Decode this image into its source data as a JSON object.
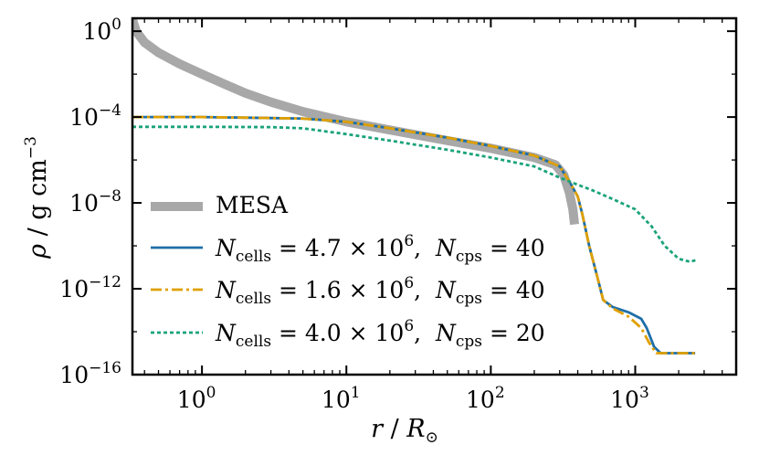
{
  "chart_data": {
    "type": "line",
    "title": "",
    "xlabel": {
      "var": "r",
      "sep": " / ",
      "sym": "R",
      "sub": "⊙"
    },
    "ylabel": {
      "var": "ρ",
      "sep": " / ",
      "unit": "g cm",
      "exp": "−3"
    },
    "x_scale": "log",
    "y_scale": "log",
    "xlim": [
      0.33,
      5000
    ],
    "ylim": [
      1e-16,
      4
    ],
    "x_ticks": [
      {
        "value": 1,
        "base": "10",
        "exp": "0"
      },
      {
        "value": 10,
        "base": "10",
        "exp": "1"
      },
      {
        "value": 100,
        "base": "10",
        "exp": "2"
      },
      {
        "value": 1000,
        "base": "10",
        "exp": "3"
      }
    ],
    "y_ticks": [
      {
        "value": 1,
        "base": "10",
        "exp": "0"
      },
      {
        "value": 0.0001,
        "base": "10",
        "exp": "−4"
      },
      {
        "value": 1e-08,
        "base": "10",
        "exp": "−8"
      },
      {
        "value": 1e-12,
        "base": "10",
        "exp": "−12"
      },
      {
        "value": 1e-16,
        "base": "10",
        "exp": "−16"
      }
    ],
    "legend_position": "lower-left",
    "series": [
      {
        "name": "MESA",
        "legend": {
          "text": "MESA"
        },
        "color": "#a8a8a8",
        "style": "solid",
        "points": [
          [
            0.33,
            3.5
          ],
          [
            0.35,
            1
          ],
          [
            0.4,
            0.3
          ],
          [
            0.5,
            0.1
          ],
          [
            0.7,
            0.03
          ],
          [
            1,
            0.01
          ],
          [
            1.5,
            0.003
          ],
          [
            2,
            0.0013
          ],
          [
            3,
            0.0005
          ],
          [
            5,
            0.00018
          ],
          [
            10,
            6e-05
          ],
          [
            20,
            2.5e-05
          ],
          [
            50,
            8e-06
          ],
          [
            100,
            3.5e-06
          ],
          [
            200,
            1.3e-06
          ],
          [
            280,
            6e-07
          ],
          [
            320,
            2e-07
          ],
          [
            350,
            3e-08
          ],
          [
            370,
            5e-09
          ],
          [
            380,
            1e-09
          ]
        ]
      },
      {
        "name": "Ncells 4.7e6, Ncps 40",
        "legend": {
          "a": "N",
          "a_sub": "cells",
          "eq1": " = 4.7 × 10",
          "exp1": "6",
          "mid": ",  ",
          "b": "N",
          "b_sub": "cps",
          "eq2": " = 40"
        },
        "color": "#1f6fa8",
        "style": "solid",
        "points": [
          [
            0.33,
            0.0001
          ],
          [
            0.4,
            0.0001
          ],
          [
            1,
            0.0001
          ],
          [
            3,
            9e-05
          ],
          [
            5,
            8.5e-05
          ],
          [
            10,
            6e-05
          ],
          [
            20,
            3e-05
          ],
          [
            50,
            1.1e-05
          ],
          [
            100,
            4.5e-06
          ],
          [
            200,
            1.6e-06
          ],
          [
            300,
            5e-07
          ],
          [
            350,
            1e-07
          ],
          [
            400,
            2e-08
          ],
          [
            430,
            3e-09
          ],
          [
            480,
            1e-10
          ],
          [
            550,
            3e-12
          ],
          [
            600,
            3e-13
          ],
          [
            700,
            1.4e-13
          ],
          [
            900,
            8e-14
          ],
          [
            1100,
            4e-14
          ],
          [
            1200,
            1.5e-14
          ],
          [
            1350,
            2e-15
          ],
          [
            1500,
            1e-15
          ],
          [
            2600,
            1e-15
          ]
        ]
      },
      {
        "name": "Ncells 1.6e6, Ncps 40",
        "legend": {
          "a": "N",
          "a_sub": "cells",
          "eq1": " = 1.6 × 10",
          "exp1": "6",
          "mid": ",  ",
          "b": "N",
          "b_sub": "cps",
          "eq2": " = 40"
        },
        "color": "#e0a000",
        "style": "dashed",
        "points": [
          [
            0.33,
            0.0001
          ],
          [
            0.4,
            0.0001
          ],
          [
            1,
            0.0001
          ],
          [
            3,
            9e-05
          ],
          [
            5,
            8.5e-05
          ],
          [
            10,
            6e-05
          ],
          [
            20,
            3e-05
          ],
          [
            50,
            1.1e-05
          ],
          [
            100,
            4.5e-06
          ],
          [
            200,
            1.6e-06
          ],
          [
            300,
            5e-07
          ],
          [
            350,
            1e-07
          ],
          [
            400,
            2e-08
          ],
          [
            430,
            3e-09
          ],
          [
            480,
            1e-10
          ],
          [
            550,
            3e-12
          ],
          [
            600,
            3e-13
          ],
          [
            700,
            1.2e-13
          ],
          [
            900,
            5e-14
          ],
          [
            1100,
            1.5e-14
          ],
          [
            1250,
            3e-15
          ],
          [
            1400,
            1e-15
          ],
          [
            2600,
            1e-15
          ]
        ]
      },
      {
        "name": "Ncells 4.0e6, Ncps 20",
        "legend": {
          "a": "N",
          "a_sub": "cells",
          "eq1": " = 4.0 × 10",
          "exp1": "6",
          "mid": ",  ",
          "b": "N",
          "b_sub": "cps",
          "eq2": " = 20"
        },
        "color": "#1aa37a",
        "style": "dotted",
        "points": [
          [
            0.33,
            3.5e-05
          ],
          [
            1,
            3.5e-05
          ],
          [
            3,
            3.4e-05
          ],
          [
            5,
            3e-05
          ],
          [
            7,
            2.2e-05
          ],
          [
            10,
            1.6e-05
          ],
          [
            20,
            8e-06
          ],
          [
            50,
            3e-06
          ],
          [
            100,
            1.3e-06
          ],
          [
            200,
            5e-07
          ],
          [
            300,
            1.5e-07
          ],
          [
            400,
            7e-08
          ],
          [
            500,
            4e-08
          ],
          [
            700,
            1.5e-08
          ],
          [
            1000,
            5e-09
          ],
          [
            1300,
            8e-10
          ],
          [
            1600,
            1e-10
          ],
          [
            2000,
            2.5e-11
          ],
          [
            2400,
            1.8e-11
          ],
          [
            2650,
            2.2e-11
          ]
        ]
      }
    ]
  }
}
